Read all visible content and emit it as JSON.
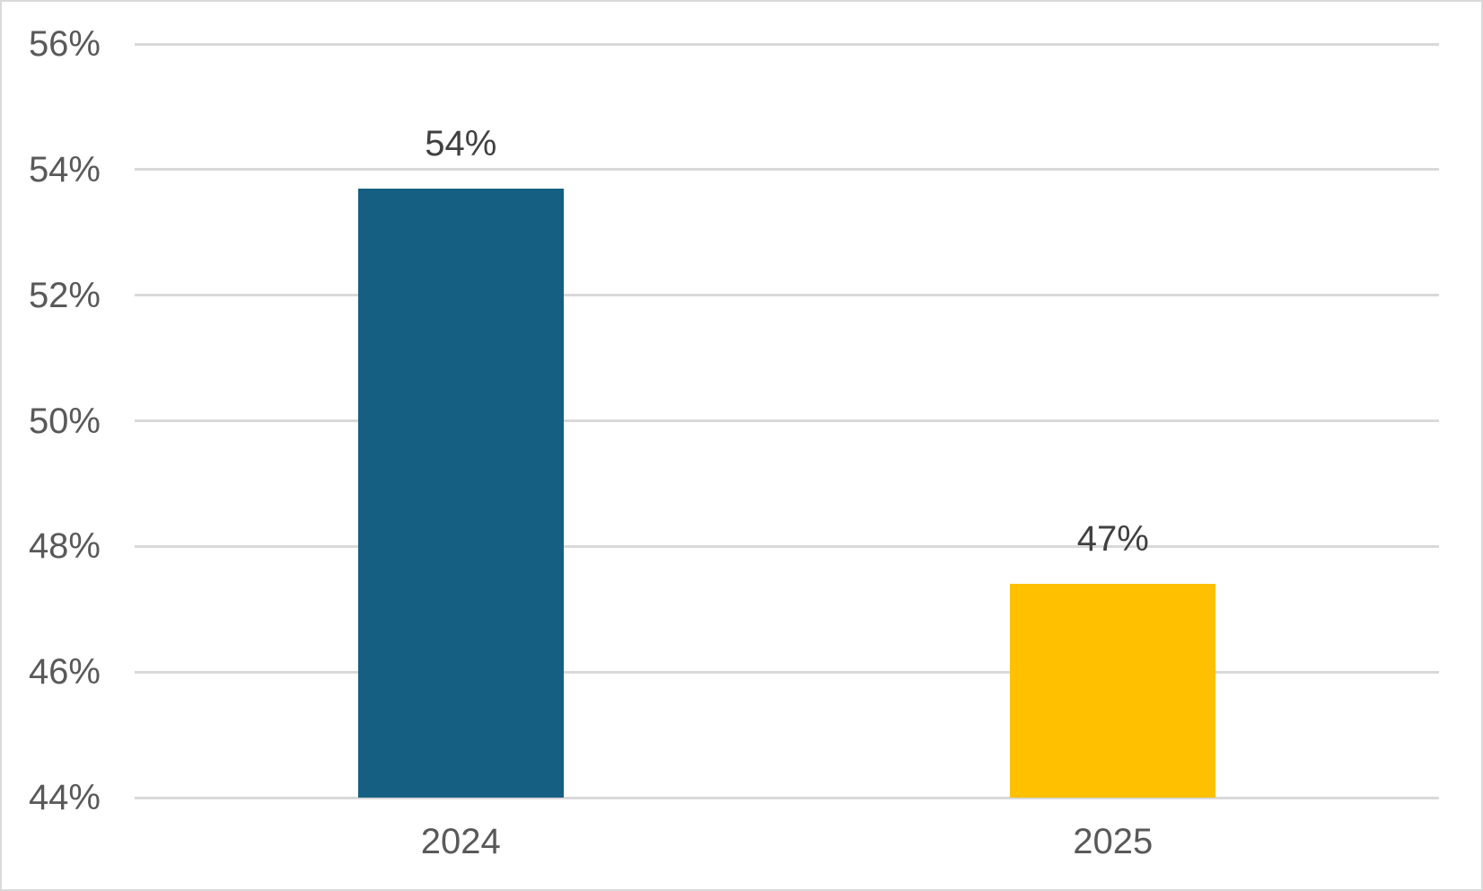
{
  "chart_data": {
    "type": "bar",
    "title": "",
    "xlabel": "",
    "ylabel": "",
    "categories": [
      "2024",
      "2025"
    ],
    "values": [
      53.7,
      47.4
    ],
    "data_labels": [
      "54%",
      "47%"
    ],
    "bar_colors": [
      "#156082",
      "#FFC000"
    ],
    "y_ticks": [
      {
        "value": 56,
        "label": "56%"
      },
      {
        "value": 54,
        "label": "54%"
      },
      {
        "value": 52,
        "label": "52%"
      },
      {
        "value": 50,
        "label": "50%"
      },
      {
        "value": 48,
        "label": "48%"
      },
      {
        "value": 46,
        "label": "46%"
      },
      {
        "value": 44,
        "label": "44%"
      }
    ],
    "ylim": [
      44,
      56
    ],
    "grid": true,
    "legend_position": "none",
    "colors": {
      "gridline": "#D9D9D9",
      "frame_border": "#D9D9D9",
      "axis_label": "#595959",
      "data_label": "#404040",
      "background": "#FFFFFF"
    }
  }
}
